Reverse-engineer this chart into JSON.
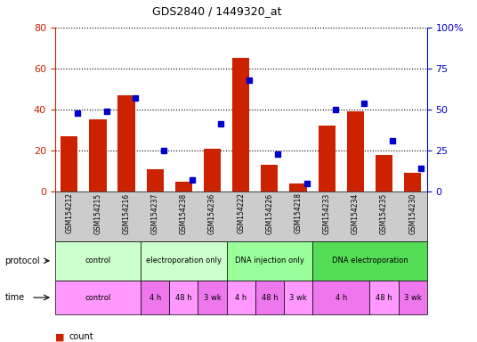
{
  "title": "GDS2840 / 1449320_at",
  "samples": [
    "GSM154212",
    "GSM154215",
    "GSM154216",
    "GSM154237",
    "GSM154238",
    "GSM154236",
    "GSM154222",
    "GSM154226",
    "GSM154218",
    "GSM154233",
    "GSM154234",
    "GSM154235",
    "GSM154230"
  ],
  "counts": [
    27,
    35,
    47,
    11,
    5,
    21,
    65,
    13,
    4,
    32,
    39,
    18,
    9
  ],
  "percentiles": [
    48,
    49,
    57,
    25,
    7,
    41,
    68,
    23,
    5,
    50,
    54,
    31,
    14
  ],
  "ylim_left": [
    0,
    80
  ],
  "ylim_right": [
    0,
    100
  ],
  "yticks_left": [
    0,
    20,
    40,
    60,
    80
  ],
  "yticks_right": [
    0,
    25,
    50,
    75,
    100
  ],
  "ytick_labels_right": [
    "0",
    "25",
    "50",
    "75",
    "100%"
  ],
  "bar_color": "#cc2200",
  "dot_color": "#0000cc",
  "proto_group_data": [
    {
      "label": "control",
      "start": 0,
      "end": 3,
      "color": "#ccffcc"
    },
    {
      "label": "electroporation only",
      "start": 3,
      "end": 6,
      "color": "#ccffcc"
    },
    {
      "label": "DNA injection only",
      "start": 6,
      "end": 9,
      "color": "#99ff99"
    },
    {
      "label": "DNA electroporation",
      "start": 9,
      "end": 13,
      "color": "#55dd55"
    }
  ],
  "time_group_data": [
    {
      "label": "control",
      "start": 0,
      "end": 3,
      "color": "#ff99ff"
    },
    {
      "label": "4 h",
      "start": 3,
      "end": 4,
      "color": "#ee77ee"
    },
    {
      "label": "48 h",
      "start": 4,
      "end": 5,
      "color": "#ff99ff"
    },
    {
      "label": "3 wk",
      "start": 5,
      "end": 6,
      "color": "#ee77ee"
    },
    {
      "label": "4 h",
      "start": 6,
      "end": 7,
      "color": "#ff99ff"
    },
    {
      "label": "48 h",
      "start": 7,
      "end": 8,
      "color": "#ee77ee"
    },
    {
      "label": "3 wk",
      "start": 8,
      "end": 9,
      "color": "#ff99ff"
    },
    {
      "label": "4 h",
      "start": 9,
      "end": 11,
      "color": "#ee77ee"
    },
    {
      "label": "48 h",
      "start": 11,
      "end": 12,
      "color": "#ff99ff"
    },
    {
      "label": "3 wk",
      "start": 12,
      "end": 13,
      "color": "#ee77ee"
    }
  ],
  "xtick_bg": "#cccccc",
  "grid_color": "#000000",
  "background_color": "#ffffff",
  "legend_count_color": "#cc2200",
  "legend_dot_color": "#0000cc"
}
